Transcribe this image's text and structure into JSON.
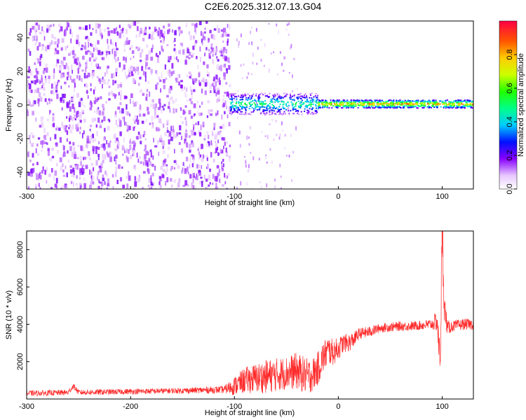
{
  "title": "C2E6.2025.312.07.13.G04",
  "chart_data": [
    {
      "type": "heatmap",
      "xlabel": "Height of straight line (km)",
      "ylabel": "Frequency (Hz)",
      "xlim": [
        -300,
        130
      ],
      "ylim": [
        -50,
        50
      ],
      "xticks": [
        -300,
        -200,
        -100,
        0,
        100
      ],
      "xtick_labels": [
        "-300",
        "-200",
        "-100",
        "0",
        "100"
      ],
      "yticks": [
        -40,
        -20,
        0,
        20,
        40
      ],
      "ytick_labels": [
        "-40",
        "-20",
        "0",
        "20",
        "40"
      ],
      "colorbar": {
        "label": "Normalized spectral amplitude",
        "range": [
          0,
          1
        ],
        "ticks": [
          0.0,
          0.2,
          0.4,
          0.6,
          0.8
        ],
        "tick_labels": [
          "0.0",
          "0.2",
          "0.4",
          "0.6",
          "0.8"
        ]
      },
      "regions": [
        {
          "x_range": [
            -300,
            -105
          ],
          "frequency_range": [
            -50,
            50
          ],
          "amplitude": [
            0.05,
            0.2
          ],
          "description_free": true
        },
        {
          "x_range": [
            -105,
            -20
          ],
          "center_frequency": 1,
          "half_width": 4,
          "amplitude": [
            0.3,
            0.6
          ]
        },
        {
          "x_range": [
            -20,
            130
          ],
          "center_frequency": 1,
          "half_width": 1.5,
          "amplitude": [
            0.6,
            0.95
          ]
        }
      ],
      "grid": false
    },
    {
      "type": "line",
      "xlabel": "Height of straight line (km)",
      "ylabel": "SNR (10 * v/v)",
      "xlim": [
        -300,
        130
      ],
      "ylim": [
        0,
        9000
      ],
      "xticks": [
        -300,
        -200,
        -100,
        0,
        100
      ],
      "xtick_labels": [
        "-300",
        "-200",
        "-100",
        "0",
        "100"
      ],
      "yticks": [
        2000,
        4000,
        6000,
        8000
      ],
      "ytick_labels": [
        "2000",
        "4000",
        "6000",
        "8000"
      ],
      "color": "#ff2a2a",
      "series": [
        {
          "x": [
            -300,
            -260,
            -255,
            -250,
            -200,
            -150,
            -110,
            -100,
            -90,
            -80,
            -70,
            -60,
            -50,
            -40,
            -30,
            -25,
            -20,
            -15,
            -10,
            -5,
            0,
            5,
            10,
            15,
            20,
            30,
            40,
            50,
            60,
            70,
            80,
            90,
            95,
            98,
            100,
            102,
            105,
            110,
            120,
            130
          ],
          "y": [
            300,
            350,
            700,
            350,
            400,
            450,
            500,
            700,
            1000,
            1100,
            1200,
            1300,
            1400,
            1500,
            1200,
            1300,
            1600,
            2200,
            2600,
            2500,
            2700,
            3000,
            3000,
            3200,
            3500,
            3600,
            3800,
            3850,
            3900,
            3900,
            3950,
            4000,
            4200,
            2000,
            9000,
            5000,
            3800,
            3900,
            4000,
            4000
          ],
          "spread": [
            150,
            150,
            150,
            150,
            150,
            150,
            200,
            500,
            700,
            800,
            900,
            900,
            900,
            1000,
            1000,
            900,
            900,
            900,
            800,
            700,
            600,
            500,
            500,
            400,
            300,
            300,
            250,
            250,
            250,
            250,
            250,
            300,
            600,
            1000,
            2000,
            800,
            400,
            300,
            300,
            300
          ]
        }
      ],
      "grid": false
    }
  ]
}
